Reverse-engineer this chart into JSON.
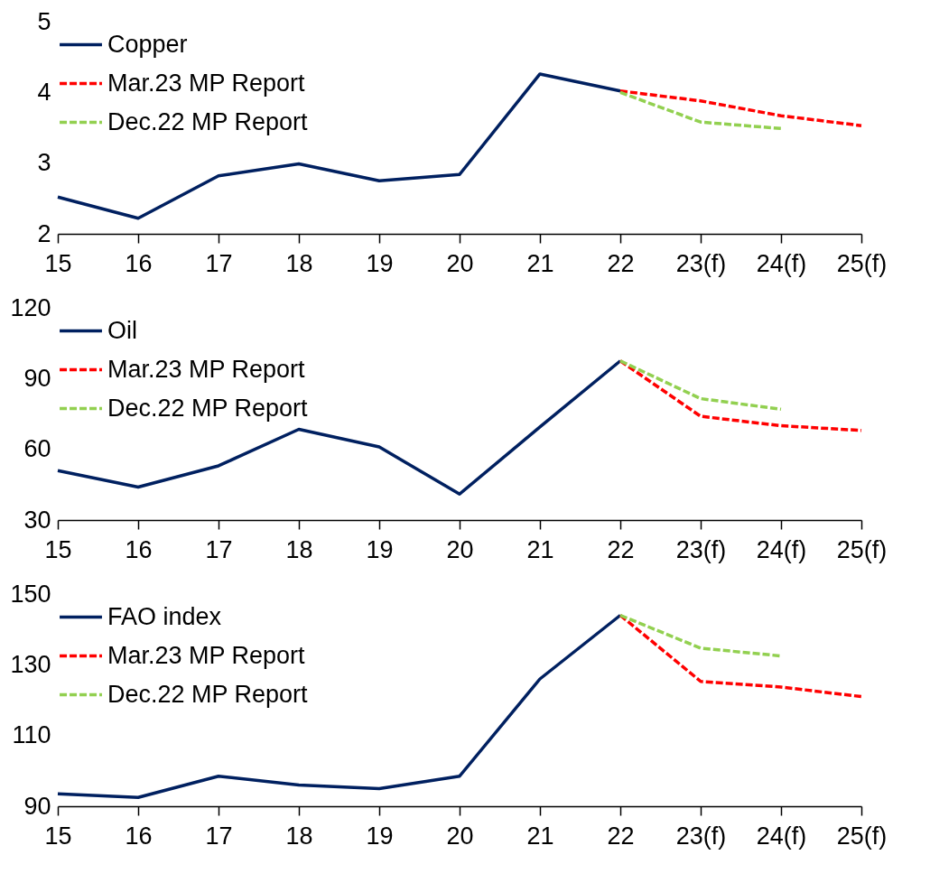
{
  "chart_data": [
    {
      "type": "line",
      "categories": [
        "15",
        "16",
        "17",
        "18",
        "19",
        "20",
        "21",
        "22",
        "23(f)",
        "24(f)",
        "25(f)"
      ],
      "ylim": [
        2,
        5
      ],
      "yticks": [
        2,
        3,
        4,
        5
      ],
      "grid": false,
      "legend": "top left",
      "series": [
        {
          "name": "Copper",
          "color": "#002060",
          "line_style": "solid",
          "values": [
            2.52,
            2.22,
            2.82,
            2.99,
            2.75,
            2.84,
            4.26,
            4.02,
            null,
            null,
            null
          ]
        },
        {
          "name": "Mar.23 MP Report",
          "color": "#ff0000",
          "line_style": "dashed",
          "values": [
            null,
            null,
            null,
            null,
            null,
            null,
            null,
            4.02,
            3.88,
            3.67,
            3.53
          ]
        },
        {
          "name": "Dec.22 MP Report",
          "color": "#92d050",
          "line_style": "dashed",
          "values": [
            null,
            null,
            null,
            null,
            null,
            null,
            null,
            4.0,
            3.58,
            3.49,
            null
          ]
        }
      ]
    },
    {
      "type": "line",
      "categories": [
        "15",
        "16",
        "17",
        "18",
        "19",
        "20",
        "21",
        "22",
        "23(f)",
        "24(f)",
        "25(f)"
      ],
      "ylim": [
        30,
        120
      ],
      "yticks": [
        30,
        60,
        90,
        120
      ],
      "grid": false,
      "legend": "top left",
      "series": [
        {
          "name": "Oil",
          "color": "#002060",
          "line_style": "solid",
          "values": [
            51,
            44,
            53,
            68.5,
            61,
            41,
            69.5,
            97.5,
            null,
            null,
            null
          ]
        },
        {
          "name": "Mar.23 MP Report",
          "color": "#ff0000",
          "line_style": "dashed",
          "values": [
            null,
            null,
            null,
            null,
            null,
            null,
            null,
            97.5,
            74,
            70,
            68
          ]
        },
        {
          "name": "Dec.22 MP Report",
          "color": "#92d050",
          "line_style": "dashed",
          "values": [
            null,
            null,
            null,
            null,
            null,
            null,
            null,
            97.5,
            81.5,
            77,
            null
          ]
        }
      ]
    },
    {
      "type": "line",
      "categories": [
        "15",
        "16",
        "17",
        "18",
        "19",
        "20",
        "21",
        "22",
        "23(f)",
        "24(f)",
        "25(f)"
      ],
      "ylim": [
        90,
        150
      ],
      "yticks": [
        90,
        110,
        130,
        150
      ],
      "grid": false,
      "legend": "top left",
      "series": [
        {
          "name": "FAO index",
          "color": "#002060",
          "line_style": "solid",
          "values": [
            93.5,
            92.5,
            98.5,
            96,
            95,
            98.5,
            126,
            144,
            null,
            null,
            null
          ]
        },
        {
          "name": "Mar.23 MP Report",
          "color": "#ff0000",
          "line_style": "dashed",
          "values": [
            null,
            null,
            null,
            null,
            null,
            null,
            null,
            144,
            125.3,
            123.7,
            121
          ]
        },
        {
          "name": "Dec.22 MP Report",
          "color": "#92d050",
          "line_style": "dashed",
          "values": [
            null,
            null,
            null,
            null,
            null,
            null,
            null,
            144,
            134.7,
            132.5,
            null
          ]
        }
      ]
    }
  ]
}
